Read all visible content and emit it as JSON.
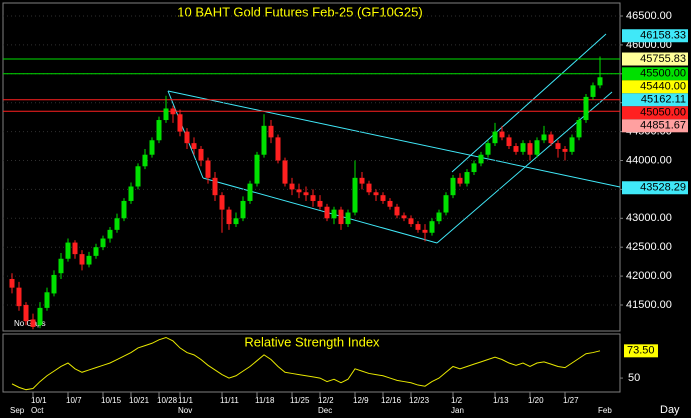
{
  "chart_data": {
    "type": "candlestick",
    "title": "10 BAHT  Gold Futures Feb-25  (GF10G25)",
    "gaps_note": "No Gaps",
    "period": "Day",
    "up_color": "#00e000",
    "down_color": "#ff2020",
    "ylim": [
      41050,
      46725
    ],
    "yticks": [
      {
        "value": 46500,
        "label": "46500.00"
      },
      {
        "value": 46000,
        "label": "46000.00"
      },
      {
        "value": 45500,
        "label": "45500.00"
      },
      {
        "value": 45000,
        "label": "45000.00"
      },
      {
        "value": 44500,
        "label": "44500.00"
      },
      {
        "value": 44000,
        "label": "44000.00"
      },
      {
        "value": 43500,
        "label": "43500.00"
      },
      {
        "value": 43000,
        "label": "43000.00"
      },
      {
        "value": 42500,
        "label": "42500.00"
      },
      {
        "value": 42000,
        "label": "42000.00"
      },
      {
        "value": 41500,
        "label": "41500.00"
      }
    ],
    "categories": [
      null,
      null,
      null,
      "10/1",
      null,
      null,
      null,
      null,
      "10/7",
      null,
      null,
      null,
      null,
      "10/15",
      null,
      null,
      null,
      "10/21",
      null,
      null,
      null,
      "10/28",
      null,
      null,
      "11/1",
      null,
      null,
      null,
      null,
      null,
      "11/11",
      null,
      null,
      null,
      null,
      "11/18",
      null,
      null,
      null,
      null,
      "11/25",
      null,
      null,
      null,
      "12/2",
      null,
      null,
      null,
      null,
      "12/9",
      null,
      null,
      null,
      "12/16",
      null,
      null,
      null,
      "12/23",
      null,
      null,
      null,
      null,
      null,
      "1/2",
      null,
      null,
      null,
      null,
      null,
      "1/13",
      null,
      null,
      null,
      null,
      "1/20",
      null,
      null,
      null,
      null,
      "1/27",
      null,
      null,
      null,
      null,
      null
    ],
    "months": [
      "Sep",
      null,
      null,
      "Oct",
      null,
      null,
      null,
      null,
      null,
      null,
      null,
      null,
      null,
      null,
      null,
      null,
      null,
      null,
      null,
      null,
      null,
      null,
      null,
      null,
      "Nov",
      null,
      null,
      null,
      null,
      null,
      null,
      null,
      null,
      null,
      null,
      null,
      null,
      null,
      null,
      null,
      null,
      null,
      null,
      null,
      "Dec",
      null,
      null,
      null,
      null,
      null,
      null,
      null,
      null,
      null,
      null,
      null,
      null,
      null,
      null,
      null,
      null,
      null,
      null,
      "Jan",
      null,
      null,
      null,
      null,
      null,
      null,
      null,
      null,
      null,
      null,
      null,
      null,
      null,
      null,
      null,
      null,
      null,
      null,
      null,
      null,
      "Feb"
    ],
    "ohlc": [
      [
        41950,
        42050,
        41700,
        41800
      ],
      [
        41800,
        41900,
        41400,
        41480
      ],
      [
        41500,
        41550,
        41150,
        41220
      ],
      [
        41250,
        41350,
        41080,
        41120
      ],
      [
        41150,
        41550,
        41100,
        41450
      ],
      [
        41450,
        41800,
        41400,
        41720
      ],
      [
        41700,
        42100,
        41650,
        42020
      ],
      [
        42050,
        42400,
        41950,
        42300
      ],
      [
        42300,
        42650,
        42250,
        42580
      ],
      [
        42580,
        42620,
        42300,
        42380
      ],
      [
        42380,
        42450,
        42100,
        42200
      ],
      [
        42200,
        42420,
        42150,
        42350
      ],
      [
        42350,
        42560,
        42300,
        42500
      ],
      [
        42500,
        42700,
        42450,
        42650
      ],
      [
        42650,
        42850,
        42580,
        42800
      ],
      [
        42800,
        43080,
        42750,
        43000
      ],
      [
        43000,
        43350,
        42950,
        43300
      ],
      [
        43300,
        43620,
        43250,
        43550
      ],
      [
        43550,
        43950,
        43500,
        43900
      ],
      [
        43900,
        44200,
        43850,
        44100
      ],
      [
        44100,
        44400,
        44050,
        44350
      ],
      [
        44350,
        44760,
        44300,
        44700
      ],
      [
        44700,
        45120,
        44650,
        44900
      ],
      [
        44900,
        44950,
        44650,
        44800
      ],
      [
        44800,
        44880,
        44420,
        44500
      ],
      [
        44500,
        44560,
        44200,
        44300
      ],
      [
        44300,
        44400,
        44100,
        44200
      ],
      [
        44200,
        44250,
        43900,
        44000
      ],
      [
        44000,
        44050,
        43600,
        43700
      ],
      [
        43700,
        43800,
        43300,
        43400
      ],
      [
        43400,
        43450,
        42750,
        43150
      ],
      [
        43150,
        43200,
        42800,
        42900
      ],
      [
        42900,
        43100,
        42850,
        43000
      ],
      [
        43000,
        43380,
        42950,
        43300
      ],
      [
        43300,
        43650,
        43250,
        43600
      ],
      [
        43600,
        44150,
        43550,
        44100
      ],
      [
        44100,
        44800,
        44050,
        44600
      ],
      [
        44600,
        44700,
        44300,
        44400
      ],
      [
        44400,
        44450,
        43950,
        44000
      ],
      [
        44000,
        44050,
        43550,
        43600
      ],
      [
        43600,
        43700,
        43400,
        43500
      ],
      [
        43500,
        43600,
        43350,
        43450
      ],
      [
        43450,
        43550,
        43300,
        43400
      ],
      [
        43400,
        43500,
        43200,
        43300
      ],
      [
        43300,
        43400,
        43150,
        43200
      ],
      [
        43200,
        43250,
        42950,
        43000
      ],
      [
        43000,
        43200,
        42900,
        43150
      ],
      [
        43150,
        43200,
        42800,
        42900
      ],
      [
        42900,
        43150,
        42850,
        43100
      ],
      [
        43100,
        44000,
        43050,
        43700
      ],
      [
        43700,
        43800,
        43500,
        43600
      ],
      [
        43600,
        43650,
        43400,
        43450
      ],
      [
        43450,
        43500,
        43300,
        43400
      ],
      [
        43400,
        43450,
        43250,
        43300
      ],
      [
        43300,
        43350,
        43150,
        43200
      ],
      [
        43200,
        43250,
        43000,
        43050
      ],
      [
        43050,
        43100,
        42950,
        43000
      ],
      [
        43000,
        43050,
        42850,
        42900
      ],
      [
        42900,
        42950,
        42750,
        42800
      ],
      [
        42800,
        42900,
        42600,
        42750
      ],
      [
        42750,
        43000,
        42700,
        42950
      ],
      [
        42950,
        43150,
        42900,
        43100
      ],
      [
        43100,
        43450,
        43050,
        43400
      ],
      [
        43400,
        43750,
        43350,
        43700
      ],
      [
        43700,
        43780,
        43550,
        43600
      ],
      [
        43600,
        43850,
        43550,
        43800
      ],
      [
        43800,
        44000,
        43750,
        43950
      ],
      [
        43950,
        44150,
        43900,
        44100
      ],
      [
        44100,
        44350,
        44050,
        44300
      ],
      [
        44300,
        44650,
        44250,
        44500
      ],
      [
        44500,
        44600,
        44350,
        44400
      ],
      [
        44400,
        44450,
        44200,
        44250
      ],
      [
        44250,
        44300,
        44100,
        44150
      ],
      [
        44150,
        44350,
        44100,
        44300
      ],
      [
        44300,
        44350,
        44000,
        44100
      ],
      [
        44100,
        44400,
        44050,
        44350
      ],
      [
        44350,
        44600,
        44300,
        44450
      ],
      [
        44450,
        44500,
        44250,
        44300
      ],
      [
        44300,
        44350,
        44050,
        44200
      ],
      [
        44200,
        44250,
        44000,
        44150
      ],
      [
        44150,
        44450,
        44100,
        44400
      ],
      [
        44400,
        44750,
        44350,
        44700
      ],
      [
        44700,
        45150,
        44650,
        45100
      ],
      [
        45100,
        45350,
        45050,
        45300
      ],
      [
        45300,
        45800,
        45250,
        45440
      ]
    ],
    "levels": [
      {
        "value": 46158.33,
        "color": "#40e8f8",
        "line": false
      },
      {
        "value": 45755.83,
        "color": "#ffff99",
        "line": true,
        "line_color": "#00e000"
      },
      {
        "value": 45500,
        "label": "45500.00",
        "color": "#00e000",
        "line": true,
        "line_color": "#00e000"
      },
      {
        "value": 45440,
        "label": "45440.00",
        "color": "#ffff00",
        "line": false
      },
      {
        "value": 45162.11,
        "color": "#40e8f8",
        "line": false
      },
      {
        "value": 45050,
        "label": "45050.00",
        "color": "#ff2020",
        "line": true,
        "line_color": "#ff2020"
      },
      {
        "value": 44851.67,
        "color": "#ffa0a0",
        "line": true,
        "line_color": "#ff2020"
      },
      {
        "value": 43528.29,
        "color": "#40e8f8",
        "line": false
      }
    ],
    "rsi": {
      "title": "Relative Strength Index",
      "color": "#e8e800",
      "ylim": [
        38,
        88
      ],
      "yticks": [
        50
      ],
      "current": {
        "value": 73.5,
        "label": "73.50"
      },
      "values": [
        45,
        42,
        40,
        41,
        47,
        52,
        56,
        60,
        63,
        58,
        55,
        57,
        59,
        61,
        63,
        66,
        69,
        72,
        76,
        78,
        80,
        83,
        85,
        82,
        76,
        72,
        70,
        66,
        61,
        57,
        53,
        50,
        52,
        56,
        60,
        65,
        70,
        66,
        60,
        55,
        54,
        53,
        52,
        51,
        50,
        47,
        49,
        46,
        49,
        58,
        56,
        54,
        53,
        52,
        50,
        48,
        47,
        46,
        44,
        43,
        47,
        50,
        55,
        60,
        58,
        60,
        62,
        64,
        66,
        68,
        66,
        63,
        61,
        63,
        60,
        63,
        64,
        62,
        60,
        59,
        63,
        67,
        71,
        72,
        73.5
      ]
    }
  }
}
